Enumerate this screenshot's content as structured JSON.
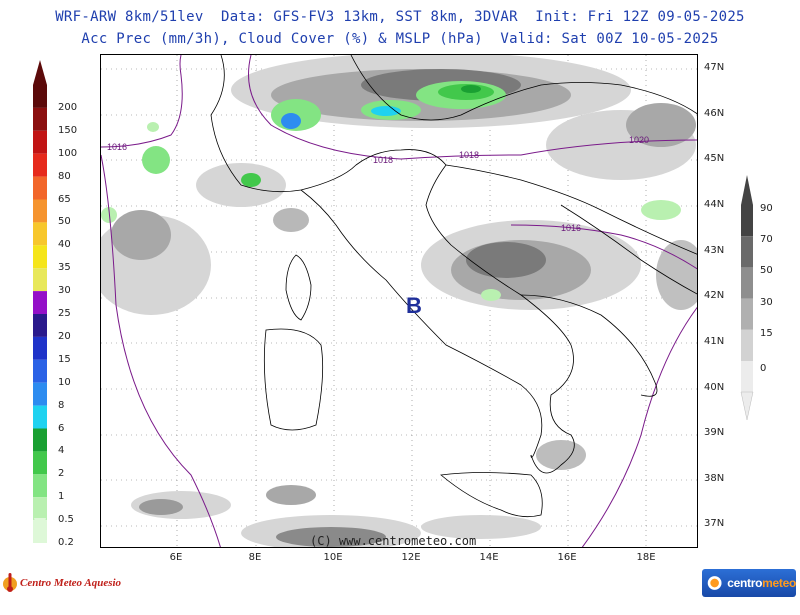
{
  "header": {
    "line1": "WRF-ARW 8km/51lev  Data: GFS-FV3 13km, SST 8km, 3DVAR  Init: Fri 12Z 09-05-2025",
    "line2": "Acc Prec (mm/3h), Cloud Cover (%) & MSLP (hPa)  Valid: Sat 00Z 10-05-2025"
  },
  "latitude_ticks": [
    "47N",
    "46N",
    "45N",
    "44N",
    "43N",
    "42N",
    "41N",
    "40N",
    "39N",
    "38N",
    "37N"
  ],
  "longitude_ticks": [
    "6E",
    "8E",
    "10E",
    "12E",
    "14E",
    "16E",
    "18E"
  ],
  "isobar_labels": [
    "1016",
    "1018",
    "1018",
    "1020",
    "1016"
  ],
  "low_pressure_marker": "B",
  "precip_legend": {
    "labels": [
      "200",
      "150",
      "100",
      "80",
      "65",
      "50",
      "40",
      "35",
      "30",
      "25",
      "20",
      "15",
      "10",
      "8",
      "6",
      "4",
      "2",
      "1",
      "0.5",
      "0.2"
    ],
    "colors": [
      "#5c0a0a",
      "#8b0f0f",
      "#c11414",
      "#e62a1c",
      "#f2662a",
      "#f5942f",
      "#f7c72c",
      "#f5e51a",
      "#e8e85a",
      "#9410c8",
      "#2a1a8c",
      "#1f33c9",
      "#2a62e6",
      "#2d8cf0",
      "#1fd2f0",
      "#1aa032",
      "#42c84b",
      "#83e483",
      "#b9f0b0",
      "#def8d8"
    ]
  },
  "cloud_legend": {
    "labels": [
      "90",
      "70",
      "50",
      "30",
      "15",
      "0"
    ],
    "colors": [
      "#444444",
      "#6a6a6a",
      "#8e8e8e",
      "#b0b0b0",
      "#d2d2d2",
      "#ececec"
    ]
  },
  "copyright": "(C) www.centrometeo.com",
  "logo_left": "Centro Meteo Aquesio",
  "logo_right": {
    "prefix": "centro",
    "suffix": "meteo"
  }
}
